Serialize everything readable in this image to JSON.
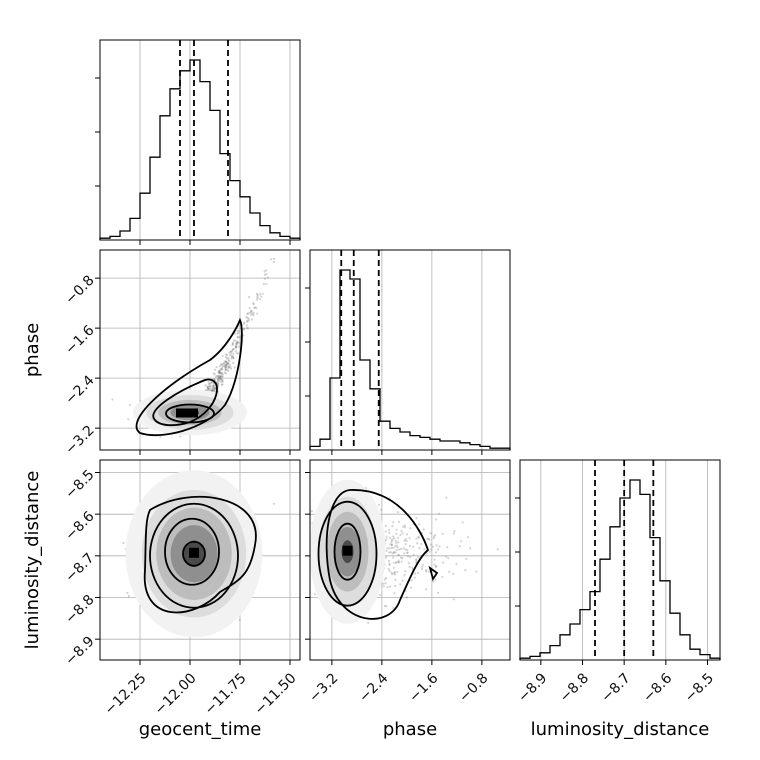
{
  "chart_data": {
    "type": "corner",
    "parameters": [
      {
        "name": "geocent_time",
        "label": "geocent_time",
        "range": [
          -12.45,
          -11.45
        ],
        "ticks": [
          -12.25,
          -12.0,
          -11.75,
          -11.5
        ],
        "tick_labels": [
          "−12.25",
          "−12.00",
          "−11.75",
          "−11.50"
        ],
        "quantiles": [
          -12.05,
          -11.98,
          -11.81
        ]
      },
      {
        "name": "phase",
        "label": "phase",
        "range": [
          -3.55,
          -0.35
        ],
        "ticks": [
          -3.2,
          -2.4,
          -1.6,
          -0.8
        ],
        "tick_labels": [
          "−3.2",
          "−2.4",
          "−1.6",
          "−0.8"
        ],
        "quantiles": [
          -3.05,
          -2.85,
          -2.45
        ]
      },
      {
        "name": "luminosity_distance",
        "label": "luminosity_distance",
        "range": [
          -8.95,
          -8.47
        ],
        "ticks": [
          -8.9,
          -8.8,
          -8.7,
          -8.6,
          -8.5
        ],
        "tick_labels": [
          "−8.9",
          "−8.8",
          "−8.7",
          "−8.6",
          "−8.5"
        ],
        "quantiles": [
          -8.77,
          -8.7,
          -8.63
        ]
      }
    ],
    "histograms": [
      {
        "param": "geocent_time",
        "bin_edges": [
          -12.45,
          -12.4,
          -12.35,
          -12.3,
          -12.25,
          -12.2,
          -12.15,
          -12.1,
          -12.05,
          -12.0,
          -11.95,
          -11.9,
          -11.85,
          -11.8,
          -11.75,
          -11.7,
          -11.65,
          -11.6,
          -11.55,
          -11.5,
          -11.45
        ],
        "counts": [
          1,
          2,
          5,
          12,
          26,
          46,
          69,
          84,
          94,
          100,
          88,
          72,
          48,
          33,
          24,
          15,
          8,
          4,
          2,
          1
        ]
      },
      {
        "param": "phase",
        "bin_edges": [
          -3.55,
          -3.39,
          -3.23,
          -3.07,
          -2.91,
          -2.75,
          -2.59,
          -2.43,
          -2.27,
          -2.11,
          -1.95,
          -1.79,
          -1.63,
          -1.47,
          -1.31,
          -1.15,
          -0.99,
          -0.83,
          -0.67,
          -0.51,
          -0.35
        ],
        "counts": [
          2,
          6,
          40,
          100,
          95,
          50,
          34,
          16,
          12,
          10,
          8,
          7,
          6,
          5,
          5,
          4,
          3,
          2,
          1,
          1
        ]
      },
      {
        "param": "luminosity_distance",
        "bin_edges": [
          -8.95,
          -8.926,
          -8.902,
          -8.878,
          -8.854,
          -8.83,
          -8.806,
          -8.782,
          -8.758,
          -8.734,
          -8.71,
          -8.686,
          -8.662,
          -8.638,
          -8.614,
          -8.59,
          -8.566,
          -8.542,
          -8.518,
          -8.494,
          -8.47
        ],
        "counts": [
          1,
          2,
          4,
          8,
          14,
          20,
          28,
          38,
          56,
          74,
          90,
          100,
          92,
          68,
          44,
          26,
          14,
          6,
          3,
          1
        ]
      }
    ],
    "joint_distributions": [
      {
        "x": "geocent_time",
        "y": "phase",
        "center": [
          -12.0,
          -2.95
        ],
        "spread": [
          0.06,
          0.1
        ],
        "shape": "banana"
      },
      {
        "x": "geocent_time",
        "y": "luminosity_distance",
        "center": [
          -11.98,
          -8.695
        ],
        "spread": [
          0.11,
          0.055
        ],
        "shape": "gaussian"
      },
      {
        "x": "phase",
        "y": "luminosity_distance",
        "center": [
          -2.95,
          -8.69
        ],
        "spread": [
          0.2,
          0.05
        ],
        "shape": "gaussian"
      }
    ],
    "grid": true,
    "xlabels": [
      "geocent_time",
      "phase",
      "luminosity_distance"
    ],
    "ylabels": [
      "phase",
      "luminosity_distance"
    ],
    "colors": {
      "line": "#000000",
      "points": "#808080",
      "grid": "#b0b0b0"
    }
  }
}
